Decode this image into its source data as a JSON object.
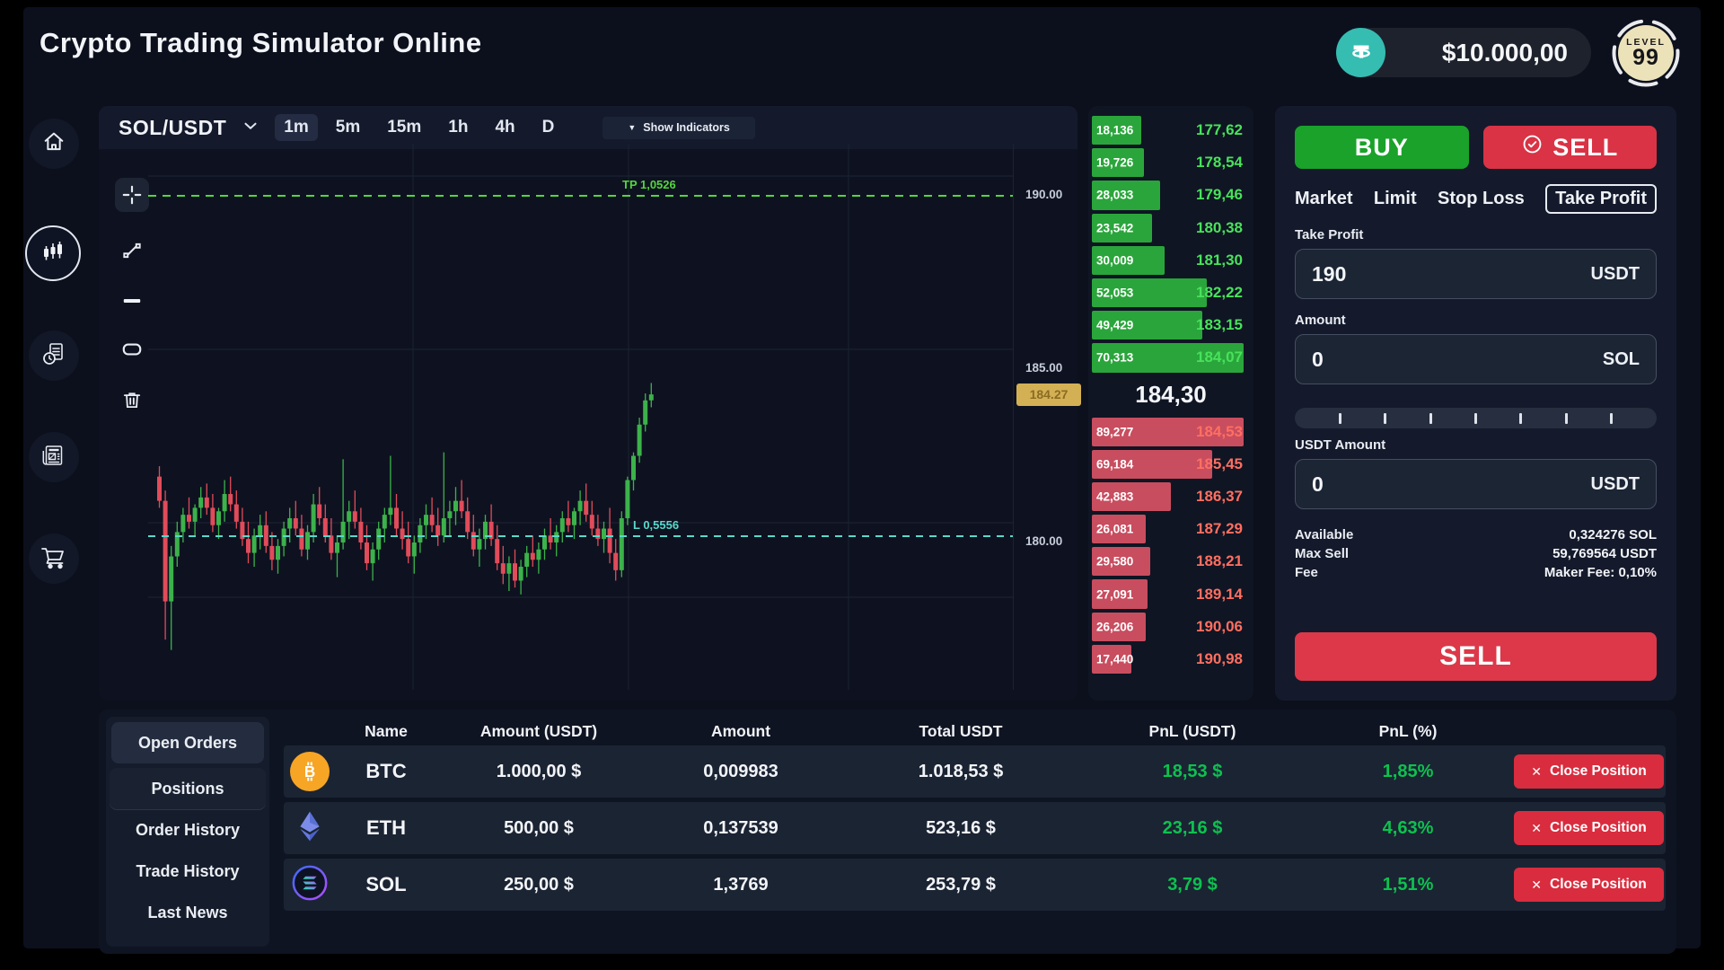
{
  "app": {
    "title": "Crypto Trading Simulator Online"
  },
  "header": {
    "balance": "$10.000,00",
    "currency_icon": "tether-icon",
    "level": {
      "label": "LEVEL",
      "value": "99"
    }
  },
  "sidebar": {
    "items": [
      "home",
      "markets",
      "order-history",
      "news",
      "shop"
    ],
    "active": "markets"
  },
  "chart": {
    "pair": "SOL/USDT",
    "timeframes": [
      "1m",
      "5m",
      "15m",
      "1h",
      "4h",
      "D"
    ],
    "active_timeframe": "1m",
    "indicators_caret": "▼",
    "indicators_label": "Show Indicators",
    "tools": [
      "crosshair",
      "trend-line",
      "horizontal-line",
      "rectangle",
      "delete"
    ],
    "tp_line_label": "TP 1,0526",
    "entry_line_label": "L 0,5556",
    "price_tag": "184.27",
    "axis": [
      "190.00",
      "185.00",
      "180.00"
    ]
  },
  "chart_data": {
    "type": "candlestick",
    "pair": "SOL/USDT",
    "timeframe": "1m",
    "y_gridline_prices": [
      190,
      185,
      180
    ],
    "ylim": [
      176.5,
      191.5
    ],
    "tp_line_price": 190.0,
    "entry_line_price": 180.18,
    "last_price": 184.27,
    "up_color": "#3cb24a",
    "down_color": "#e14b5a",
    "candles": [
      [
        181.9,
        182.2,
        181.0,
        181.2
      ],
      [
        181.2,
        181.5,
        177.2,
        178.3
      ],
      [
        178.3,
        179.9,
        176.9,
        179.6
      ],
      [
        179.6,
        180.6,
        179.3,
        180.3
      ],
      [
        180.3,
        181.0,
        180.0,
        180.8
      ],
      [
        180.8,
        181.3,
        180.4,
        180.6
      ],
      [
        180.6,
        181.1,
        180.2,
        181.0
      ],
      [
        181.0,
        181.6,
        180.7,
        181.3
      ],
      [
        181.3,
        181.7,
        180.8,
        181.0
      ],
      [
        181.0,
        181.4,
        180.3,
        180.5
      ],
      [
        180.5,
        181.0,
        180.1,
        180.9
      ],
      [
        180.9,
        181.8,
        180.6,
        181.4
      ],
      [
        181.4,
        181.9,
        180.9,
        181.1
      ],
      [
        181.1,
        181.5,
        180.4,
        180.6
      ],
      [
        180.6,
        181.0,
        179.9,
        180.1
      ],
      [
        180.1,
        180.6,
        179.4,
        179.7
      ],
      [
        179.7,
        180.4,
        179.3,
        180.2
      ],
      [
        180.2,
        180.8,
        179.8,
        180.5
      ],
      [
        180.5,
        180.9,
        179.7,
        179.9
      ],
      [
        179.9,
        180.3,
        179.2,
        179.5
      ],
      [
        179.5,
        180.1,
        179.1,
        179.9
      ],
      [
        179.9,
        180.6,
        179.6,
        180.4
      ],
      [
        180.4,
        181.0,
        180.0,
        180.7
      ],
      [
        180.7,
        181.2,
        180.2,
        180.4
      ],
      [
        180.4,
        180.8,
        179.6,
        179.8
      ],
      [
        179.8,
        180.5,
        179.5,
        180.3
      ],
      [
        180.3,
        181.4,
        180.0,
        181.1
      ],
      [
        181.1,
        181.6,
        180.5,
        180.7
      ],
      [
        180.7,
        181.1,
        180.0,
        180.2
      ],
      [
        180.2,
        180.7,
        179.5,
        179.7
      ],
      [
        179.7,
        180.2,
        179.0,
        180.0
      ],
      [
        180.0,
        182.4,
        179.8,
        180.6
      ],
      [
        180.6,
        181.2,
        180.1,
        180.9
      ],
      [
        180.9,
        181.5,
        180.4,
        180.6
      ],
      [
        180.6,
        181.0,
        179.8,
        180.0
      ],
      [
        180.0,
        180.5,
        179.2,
        179.4
      ],
      [
        179.4,
        180.0,
        178.9,
        179.8
      ],
      [
        179.8,
        180.6,
        179.5,
        180.4
      ],
      [
        180.4,
        181.0,
        180.0,
        180.8
      ],
      [
        180.8,
        182.5,
        180.5,
        181.0
      ],
      [
        181.0,
        181.4,
        180.2,
        180.4
      ],
      [
        180.4,
        180.9,
        179.8,
        180.1
      ],
      [
        180.1,
        180.6,
        179.4,
        179.6
      ],
      [
        179.6,
        180.2,
        179.1,
        180.0
      ],
      [
        180.0,
        180.7,
        179.7,
        180.5
      ],
      [
        180.5,
        181.1,
        180.1,
        180.8
      ],
      [
        180.8,
        181.3,
        180.3,
        180.5
      ],
      [
        180.5,
        181.0,
        179.9,
        180.2
      ],
      [
        180.2,
        182.6,
        180.0,
        180.7
      ],
      [
        180.7,
        181.2,
        180.2,
        180.9
      ],
      [
        180.9,
        181.6,
        180.5,
        181.2
      ],
      [
        181.2,
        181.8,
        180.7,
        180.9
      ],
      [
        180.9,
        181.3,
        180.1,
        180.3
      ],
      [
        180.3,
        180.8,
        179.6,
        179.8
      ],
      [
        179.8,
        180.4,
        179.3,
        180.1
      ],
      [
        180.1,
        180.8,
        179.8,
        180.6
      ],
      [
        180.6,
        181.1,
        179.9,
        180.1
      ],
      [
        180.1,
        180.5,
        179.2,
        179.4
      ],
      [
        179.4,
        179.9,
        178.8,
        179.1
      ],
      [
        179.1,
        179.6,
        178.6,
        179.4
      ],
      [
        179.4,
        179.8,
        178.7,
        178.9
      ],
      [
        178.9,
        179.5,
        178.5,
        179.3
      ],
      [
        179.3,
        179.9,
        179.0,
        179.7
      ],
      [
        179.7,
        180.2,
        179.3,
        179.5
      ],
      [
        179.5,
        180.0,
        179.1,
        179.8
      ],
      [
        179.8,
        180.4,
        179.5,
        180.2
      ],
      [
        180.2,
        180.7,
        179.8,
        180.0
      ],
      [
        180.0,
        180.5,
        179.6,
        180.3
      ],
      [
        180.3,
        180.9,
        180.0,
        180.7
      ],
      [
        180.7,
        181.2,
        180.3,
        180.5
      ],
      [
        180.5,
        181.0,
        180.1,
        180.9
      ],
      [
        180.9,
        181.5,
        180.5,
        181.2
      ],
      [
        181.2,
        181.7,
        180.6,
        180.8
      ],
      [
        180.8,
        181.2,
        180.2,
        180.4
      ],
      [
        180.4,
        180.8,
        179.9,
        180.1
      ],
      [
        180.1,
        180.6,
        179.7,
        180.4
      ],
      [
        180.4,
        181.0,
        179.4,
        179.7
      ],
      [
        179.7,
        180.1,
        178.9,
        179.2
      ],
      [
        179.2,
        180.9,
        179.0,
        180.7
      ],
      [
        180.7,
        181.9,
        180.5,
        181.8
      ],
      [
        181.8,
        182.6,
        181.5,
        182.5
      ],
      [
        182.5,
        183.6,
        182.3,
        183.4
      ],
      [
        183.4,
        184.3,
        183.2,
        184.1
      ],
      [
        184.1,
        184.6,
        183.9,
        184.27
      ]
    ]
  },
  "order_book": {
    "mid_price": "184,30",
    "bids": [
      {
        "qty": "18,136",
        "price": "177,62",
        "depth": 0.31
      },
      {
        "qty": "19,726",
        "price": "178,54",
        "depth": 0.33
      },
      {
        "qty": "28,033",
        "price": "179,46",
        "depth": 0.43
      },
      {
        "qty": "23,542",
        "price": "180,38",
        "depth": 0.38
      },
      {
        "qty": "30,009",
        "price": "181,30",
        "depth": 0.46
      },
      {
        "qty": "52,053",
        "price": "182,22",
        "depth": 0.73
      },
      {
        "qty": "49,429",
        "price": "183,15",
        "depth": 0.7
      },
      {
        "qty": "70,313",
        "price": "184,07",
        "depth": 0.96
      }
    ],
    "asks": [
      {
        "qty": "89,277",
        "price": "184,53",
        "depth": 0.96
      },
      {
        "qty": "69,184",
        "price": "185,45",
        "depth": 0.76
      },
      {
        "qty": "42,883",
        "price": "186,37",
        "depth": 0.5
      },
      {
        "qty": "26,081",
        "price": "187,29",
        "depth": 0.34
      },
      {
        "qty": "29,580",
        "price": "188,21",
        "depth": 0.37
      },
      {
        "qty": "27,091",
        "price": "189,14",
        "depth": 0.35
      },
      {
        "qty": "26,206",
        "price": "190,06",
        "depth": 0.34
      },
      {
        "qty": "17,440",
        "price": "190,98",
        "depth": 0.25
      }
    ]
  },
  "trade_panel": {
    "buy_label": "BUY",
    "sell_label": "SELL",
    "order_types": [
      "Market",
      "Limit",
      "Stop Loss",
      "Take Profit"
    ],
    "active_order_type": "Take Profit",
    "take_profit": {
      "label": "Take Profit",
      "value": "190",
      "unit": "USDT"
    },
    "amount": {
      "label": "Amount",
      "value": "0",
      "unit": "SOL"
    },
    "usdt_amount": {
      "label": "USDT Amount",
      "value": "0",
      "unit": "USDT"
    },
    "slider_ticks": 7,
    "info": [
      {
        "label": "Available",
        "value": "0,324276 SOL"
      },
      {
        "label": "Max Sell",
        "value": "59,769564 USDT"
      },
      {
        "label": "Fee",
        "value": "Maker Fee: 0,10%"
      }
    ],
    "submit_label": "SELL"
  },
  "positions_panel": {
    "tabs": [
      "Open Orders",
      "Positions",
      "Order History",
      "Trade History",
      "Last News"
    ],
    "active_tab": "Positions",
    "columns": [
      "Name",
      "Amount (USDT)",
      "Amount",
      "Total USDT",
      "PnL (USDT)",
      "PnL (%)"
    ],
    "close_button_label": "Close Position",
    "rows": [
      {
        "coin": "BTC",
        "amount_usdt": "1.000,00 $",
        "amount": "0,009983",
        "total": "1.018,53 $",
        "pnl": "18,53 $",
        "pnl_pct": "1,85%"
      },
      {
        "coin": "ETH",
        "amount_usdt": "500,00 $",
        "amount": "0,137539",
        "total": "523,16 $",
        "pnl": "23,16 $",
        "pnl_pct": "4,63%"
      },
      {
        "coin": "SOL",
        "amount_usdt": "250,00 $",
        "amount": "1,3769",
        "total": "253,79 $",
        "pnl": "3,79 $",
        "pnl_pct": "1,51%"
      }
    ]
  },
  "colors": {
    "buy_green": "#1aa22b",
    "sell_red": "#d93345",
    "pnl_green": "#0cc24f",
    "price_tag_gold": "#d4b055",
    "tether_teal": "#35bdb2",
    "tp_line_green": "#52d73d",
    "entry_line_teal": "#58d9cb"
  }
}
